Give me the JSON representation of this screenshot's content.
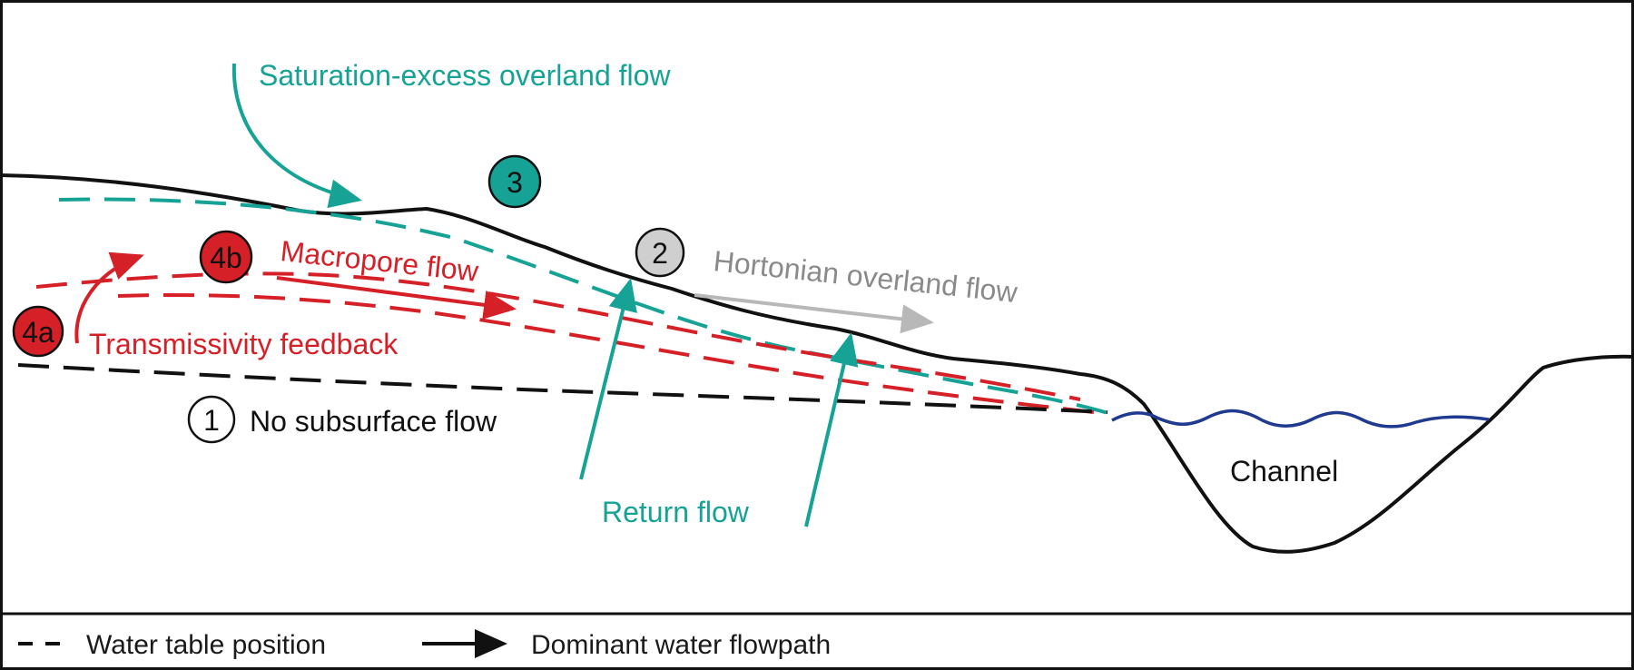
{
  "colors": {
    "teal": "#16a396",
    "red": "#d62027",
    "gray_arrow": "#b8b8b8",
    "gray_text": "#8a8a8a",
    "black": "#111111",
    "water": "#1f3a8f",
    "badge_gray": "#cfcfcf"
  },
  "badges": {
    "b1": "1",
    "b2": "2",
    "b3": "3",
    "b4a": "4a",
    "b4b": "4b"
  },
  "labels": {
    "saturation_excess": "Saturation-excess overland flow",
    "macropore": "Macropore flow",
    "hortonian": "Hortonian overland flow",
    "transmissivity": "Transmissivity feedback",
    "no_subsurface": "No subsurface flow",
    "return_flow": "Return flow",
    "channel": "Channel"
  },
  "legend": {
    "water_table": "Water table position",
    "flowpath": "Dominant water flowpath"
  },
  "icons": {
    "arrow": "arrow-icon",
    "dash": "dashed-line-icon"
  }
}
